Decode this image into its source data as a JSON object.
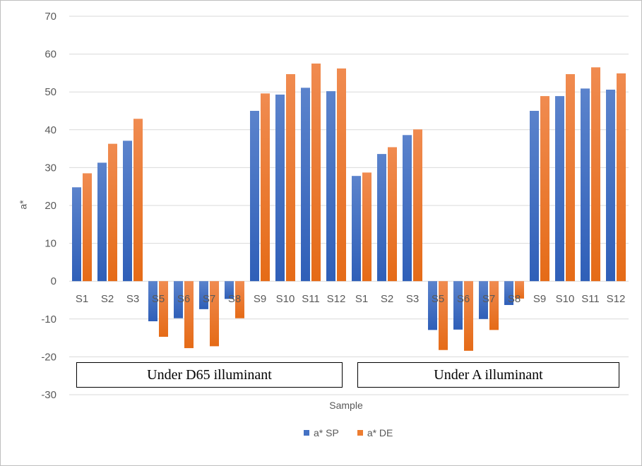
{
  "chart_data": {
    "type": "bar",
    "title": "",
    "xlabel": "Sample",
    "ylabel": "a*",
    "ylim": [
      -30,
      70
    ],
    "yticks": [
      70,
      60,
      50,
      40,
      30,
      20,
      10,
      0,
      -10,
      -20,
      -30
    ],
    "grid": true,
    "legend_position": "bottom",
    "categories": [
      "S1",
      "S2",
      "S3",
      "S5",
      "S6",
      "S7",
      "S8",
      "S9",
      "S10",
      "S11",
      "S12",
      "S1",
      "S2",
      "S3",
      "S5",
      "S6",
      "S7",
      "S8",
      "S9",
      "S10",
      "S11",
      "S12"
    ],
    "series": [
      {
        "name": "a* SP",
        "color": "#4472C4",
        "values": [
          24.8,
          31.3,
          37.1,
          -10.6,
          -9.8,
          -7.4,
          -4.7,
          45.0,
          49.3,
          51.1,
          50.2,
          27.8,
          33.6,
          38.6,
          -12.9,
          -12.8,
          -10.0,
          -6.3,
          45.0,
          48.9,
          50.9,
          50.6
        ]
      },
      {
        "name": "a* DE",
        "color": "#ED7D31",
        "values": [
          28.5,
          36.3,
          42.9,
          -14.7,
          -17.7,
          -17.2,
          -9.8,
          49.6,
          54.7,
          57.5,
          56.2,
          28.7,
          35.4,
          40.1,
          -18.2,
          -18.4,
          -12.9,
          -4.6,
          48.9,
          54.7,
          56.5,
          54.9
        ]
      }
    ],
    "annotations": [
      "Under D65 illuminant",
      "Under A illuminant"
    ]
  }
}
